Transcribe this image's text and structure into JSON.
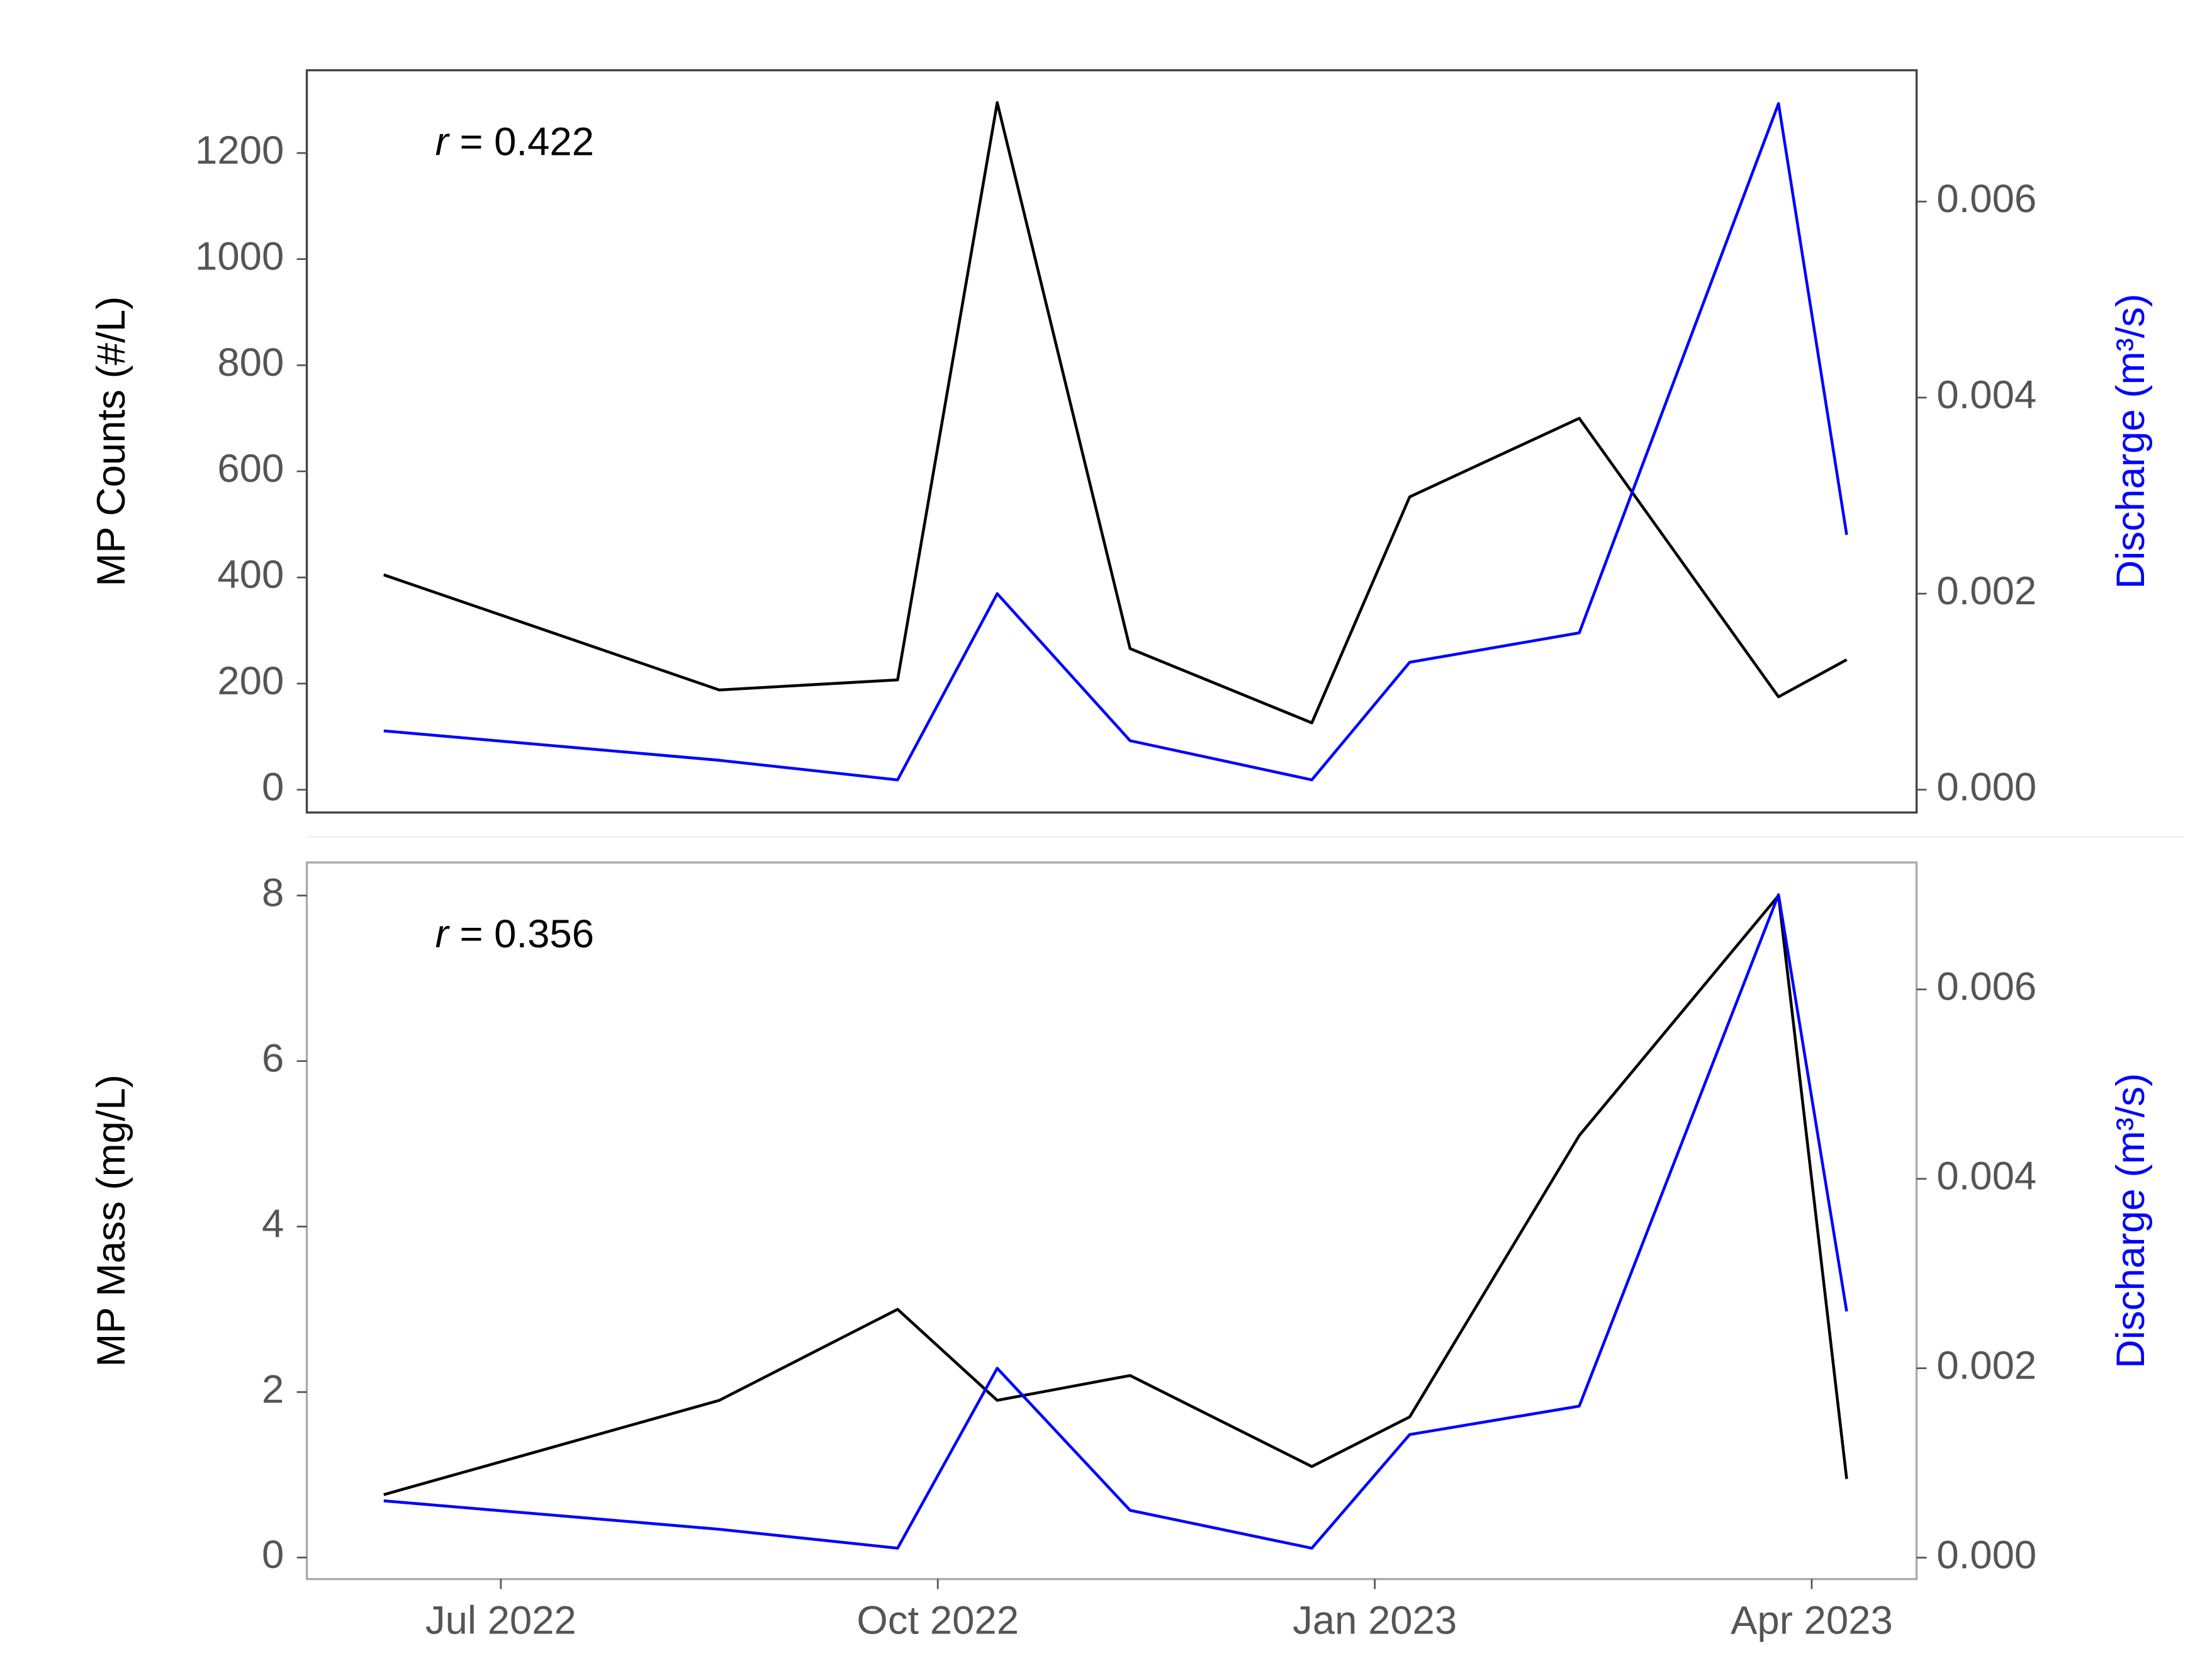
{
  "chart_data": [
    {
      "type": "line",
      "annotation": "r = 0.422",
      "ylabel": "MP Counts (#/L)",
      "y2label": "Discharge (m³/s)",
      "x": [
        2022.433,
        2022.625,
        2022.727,
        2022.784,
        2022.86,
        2022.964,
        2023.02,
        2023.117,
        2023.231,
        2023.27
      ],
      "xlim": [
        2022.389,
        2023.31
      ],
      "ylim": [
        -43,
        1356
      ],
      "yticks": [
        0,
        200,
        400,
        600,
        800,
        1000,
        1200
      ],
      "y2lim": [
        -0.000233,
        0.00734
      ],
      "y2ticks": [
        {
          "value": 0,
          "label": "0.000"
        },
        {
          "value": 0.002,
          "label": "0.002"
        },
        {
          "value": 0.004,
          "label": "0.004"
        },
        {
          "value": 0.006,
          "label": "0.006"
        }
      ],
      "frame_color": "#444444",
      "series": [
        {
          "color": "#000000",
          "values": [
            405,
            188,
            207,
            1295,
            266,
            126,
            552,
            700,
            175,
            245
          ]
        },
        {
          "color": "#0000ff",
          "axis": "y2",
          "values": [
            0.0006,
            0.0003,
            0.0001,
            0.002,
            0.0005,
            0.0001,
            0.0013,
            0.0016,
            0.007,
            0.0026
          ]
        }
      ]
    },
    {
      "type": "line",
      "annotation": "r = 0.356",
      "ylabel": "MP Mass (mg/L)",
      "y2label": "Discharge (m³/s)",
      "x": [
        2022.433,
        2022.625,
        2022.727,
        2022.784,
        2022.86,
        2022.964,
        2023.02,
        2023.117,
        2023.231,
        2023.27
      ],
      "xlim": [
        2022.389,
        2023.31
      ],
      "xticks": [
        {
          "value": 2022.5,
          "label": "Jul 2022"
        },
        {
          "value": 2022.75,
          "label": "Oct 2022"
        },
        {
          "value": 2023.0,
          "label": "Jan 2023"
        },
        {
          "value": 2023.25,
          "label": "Apr 2023"
        }
      ],
      "ylim": [
        -0.26,
        8.4
      ],
      "yticks": [
        0,
        2,
        4,
        6,
        8
      ],
      "y2lim": [
        -0.000226,
        0.00734
      ],
      "y2ticks": [
        {
          "value": 0,
          "label": "0.000"
        },
        {
          "value": 0.002,
          "label": "0.002"
        },
        {
          "value": 0.004,
          "label": "0.004"
        },
        {
          "value": 0.006,
          "label": "0.006"
        }
      ],
      "frame_color": "#aaaaaa",
      "series": [
        {
          "color": "#000000",
          "values": [
            0.76,
            1.9,
            3.0,
            1.9,
            2.2,
            1.1,
            1.7,
            5.1,
            8.0,
            0.95
          ]
        },
        {
          "color": "#0000ff",
          "axis": "y2",
          "values": [
            0.0006,
            0.0003,
            0.0001,
            0.002,
            0.0005,
            0.0001,
            0.0013,
            0.0016,
            0.007,
            0.0026
          ]
        }
      ]
    }
  ]
}
